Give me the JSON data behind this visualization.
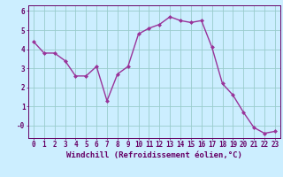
{
  "x": [
    0,
    1,
    2,
    3,
    4,
    5,
    6,
    7,
    8,
    9,
    10,
    11,
    12,
    13,
    14,
    15,
    16,
    17,
    18,
    19,
    20,
    21,
    22,
    23
  ],
  "y": [
    4.4,
    3.8,
    3.8,
    3.4,
    2.6,
    2.6,
    3.1,
    1.3,
    2.7,
    3.1,
    4.8,
    5.1,
    5.3,
    5.7,
    5.5,
    5.4,
    5.5,
    4.1,
    2.2,
    1.6,
    0.7,
    -0.1,
    -0.4,
    -0.3
  ],
  "line_color": "#993399",
  "marker": "D",
  "marker_size": 2.0,
  "linewidth": 1.0,
  "bg_color": "#cceeff",
  "grid_color": "#99cccc",
  "xlabel": "Windchill (Refroidissement éolien,°C)",
  "xlabel_fontsize": 6.5,
  "yticks": [
    0,
    1,
    2,
    3,
    4,
    5,
    6
  ],
  "ytick_labels": [
    "-0",
    "1",
    "2",
    "3",
    "4",
    "5",
    "6"
  ],
  "xtick_labels": [
    "0",
    "1",
    "2",
    "3",
    "4",
    "5",
    "6",
    "7",
    "8",
    "9",
    "10",
    "11",
    "12",
    "13",
    "14",
    "15",
    "16",
    "17",
    "18",
    "19",
    "20",
    "21",
    "22",
    "23"
  ],
  "ylim": [
    -0.65,
    6.3
  ],
  "xlim": [
    -0.5,
    23.5
  ],
  "tick_fontsize": 5.5,
  "axis_color": "#660066"
}
